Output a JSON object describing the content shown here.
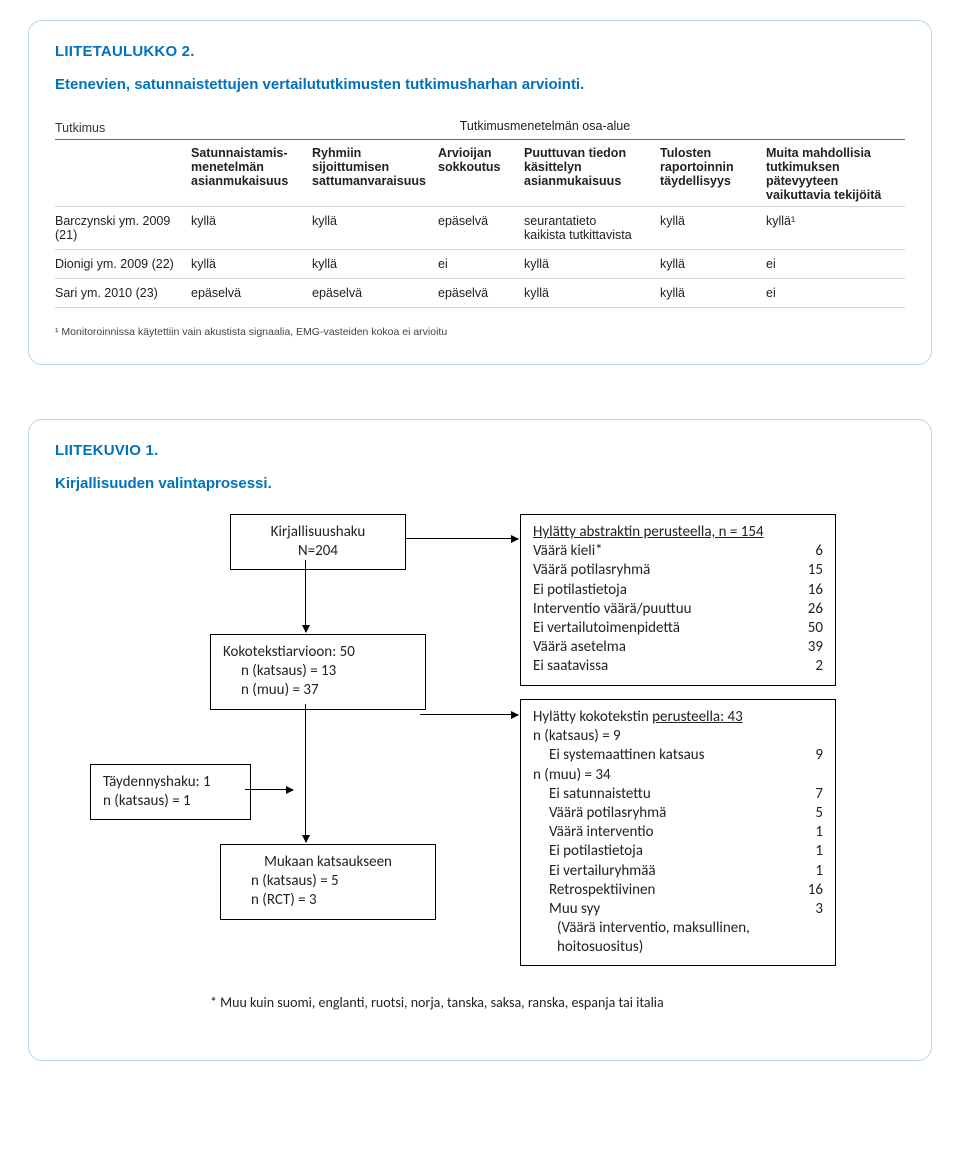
{
  "panel1": {
    "title": "LIITETAULUKKO 2.",
    "subtitle": "Etenevien, satunnaistettujen vertailututkimusten tutkimusharhan arviointi.",
    "table": {
      "first_col_label": "Tutkimus",
      "group_label": "Tutkimusmenetelmän osa-alue",
      "columns": [
        "Satunnaistamis-\nmenetelmän\nasianmukaisuus",
        "Ryhmiin\nsijoittumisen\nsattumanvaraisuus",
        "Arvioijan\nsokkoutus",
        "Puuttuvan tiedon\nkäsittelyn\nasianmukaisuus",
        "Tulosten\nraportoinnin\ntäydellisyys",
        "Muita mahdollisia\ntutkimuksen pätevyyteen\nvaikuttavia tekijöitä"
      ],
      "rows": [
        {
          "study": "Barczynski ym. 2009\n(21)",
          "cells": [
            "kyllä",
            "kyllä",
            "epäselvä",
            "seurantatieto\nkaikista tutkittavista",
            "kyllä",
            "kyllä¹"
          ]
        },
        {
          "study": "Dionigi ym. 2009 (22)",
          "cells": [
            "kyllä",
            "kyllä",
            "ei",
            "kyllä",
            "kyllä",
            "ei"
          ]
        },
        {
          "study": "Sari ym. 2010 (23)",
          "cells": [
            "epäselvä",
            "epäselvä",
            "epäselvä",
            "kyllä",
            "kyllä",
            "ei"
          ]
        }
      ]
    },
    "footnote": "¹ Monitoroinnissa käytettiin vain akustista signaalia, EMG-vasteiden kokoa ei arvioitu"
  },
  "panel2": {
    "title": "LIITEKUVIO 1.",
    "subtitle": "Kirjallisuuden valintaprosessi.",
    "flow": {
      "box_a": {
        "l1": "Kirjallisuushaku",
        "l2": "N=204"
      },
      "box_b": {
        "l1": "Kokotekstiarvioon: 50",
        "l2": "n (katsaus) = 13",
        "l3": "n (muu) = 37"
      },
      "box_c": {
        "l1": "Täydennyshaku: 1",
        "l2": "n (katsaus) = 1"
      },
      "box_d": {
        "l1": "Mukaan katsaukseen",
        "l2": "n (katsaus) = 5",
        "l3": "n (RCT) = 3"
      },
      "box_e": {
        "title": "Hylätty abstraktin perusteella, n = 154",
        "items": [
          [
            "Väärä kieli*",
            "6"
          ],
          [
            "Väärä potilasryhmä",
            "15"
          ],
          [
            "Ei potilastietoja",
            "16"
          ],
          [
            "Interventio väärä/puuttuu",
            "26"
          ],
          [
            "Ei vertailutoimenpidettä",
            "50"
          ],
          [
            "Väärä asetelma",
            "39"
          ],
          [
            "Ei saatavissa",
            "2"
          ]
        ]
      },
      "box_f": {
        "title": "Hylätty kokotekstin perusteella: 43",
        "sub1": "n (katsaus) = 9",
        "sub1b": "Ei systemaattinen katsaus",
        "sub1b_val": "9",
        "sub2": "n (muu) = 34",
        "items": [
          [
            "Ei satunnaistettu",
            "7"
          ],
          [
            "Väärä potilasryhmä",
            "5"
          ],
          [
            "Väärä interventio",
            "1"
          ],
          [
            "Ei potilastietoja",
            "1"
          ],
          [
            "Ei vertailuryhmää",
            "1"
          ],
          [
            "Retrospektiivinen",
            "16"
          ],
          [
            "Muu syy",
            "3"
          ]
        ],
        "note": "(Väärä interventio, maksullinen,\nhoitosuositus)"
      },
      "footnote": "* Muu kuin suomi, englanti, ruotsi, norja, tanska, saksa, ranska, espanja tai italia"
    }
  }
}
